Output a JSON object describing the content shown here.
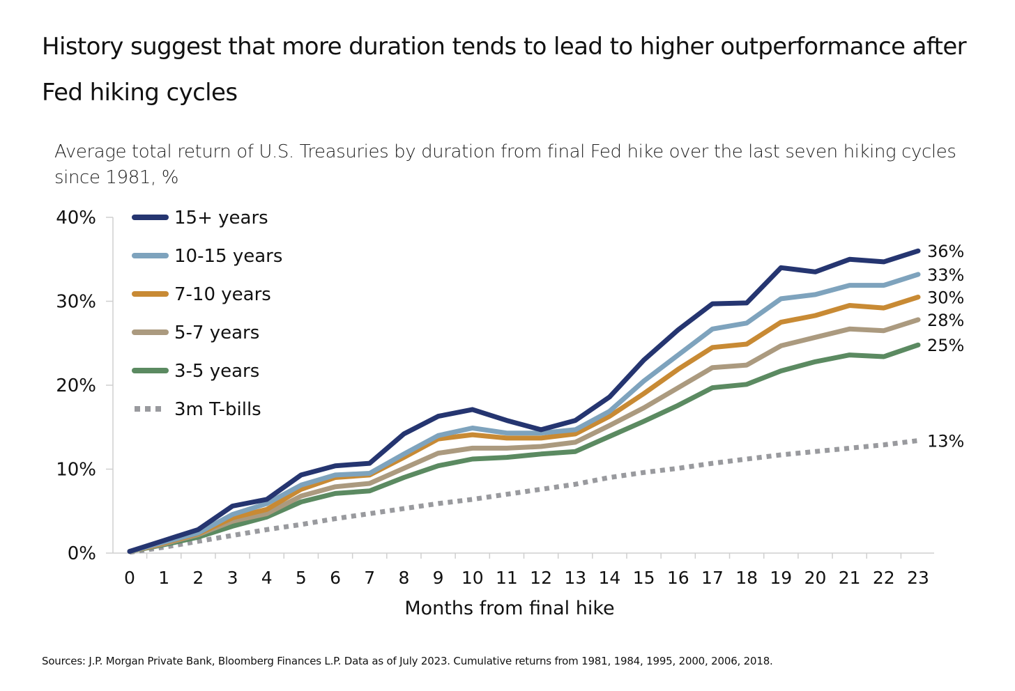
{
  "title": "History suggest that more duration tends to lead to higher outperformance after Fed hiking cycles",
  "subtitle": "Average total return of U.S. Treasuries by duration from final Fed hike over the last seven hiking cycles since 1981, %",
  "source": "Sources: J.P. Morgan Private Bank, Bloomberg Finances L.P. Data as of July 2023. Cumulative returns from 1981, 1984, 1995, 2000, 2006, 2018.",
  "chart_data": {
    "type": "line",
    "title": "History suggest that more duration tends to lead to higher outperformance after Fed hiking cycles",
    "subtitle": "Average total return of U.S. Treasuries by duration from final Fed hike over the last seven hiking cycles since 1981, %",
    "xlabel": "Months from final hike",
    "ylabel": "",
    "ylim": [
      0,
      40
    ],
    "yticks": [
      0,
      10,
      20,
      30,
      40
    ],
    "ytick_labels": [
      "0%",
      "10%",
      "20%",
      "30%",
      "40%"
    ],
    "x": [
      0,
      1,
      2,
      3,
      4,
      5,
      6,
      7,
      8,
      9,
      10,
      11,
      12,
      13,
      14,
      15,
      16,
      17,
      18,
      19,
      20,
      21,
      22,
      23
    ],
    "x_labels": [
      "0",
      "1",
      "2",
      "3",
      "4",
      "5",
      "6",
      "7",
      "8",
      "9",
      "10",
      "11",
      "12",
      "13",
      "14",
      "15",
      "16",
      "17",
      "18",
      "19",
      "20",
      "21",
      "22",
      "23"
    ],
    "grid": false,
    "legend_position": "top-left",
    "series": [
      {
        "name": "15+ years",
        "color": "#253570",
        "style": "solid",
        "end_label": "36%",
        "values": [
          0.2,
          1.5,
          2.8,
          5.6,
          6.4,
          9.3,
          10.4,
          10.7,
          14.2,
          16.3,
          17.1,
          15.8,
          14.7,
          15.8,
          18.6,
          23.0,
          26.6,
          29.7,
          29.8,
          34.0,
          33.5,
          35.0,
          34.7,
          36.0
        ]
      },
      {
        "name": "10-15 years",
        "color": "#7ea3bd",
        "style": "solid",
        "end_label": "33%",
        "values": [
          0.2,
          1.3,
          2.4,
          4.6,
          5.9,
          8.1,
          9.3,
          9.5,
          11.8,
          14.0,
          14.9,
          14.3,
          14.3,
          14.7,
          16.9,
          20.5,
          23.6,
          26.7,
          27.4,
          30.3,
          30.8,
          31.9,
          31.9,
          33.2
        ]
      },
      {
        "name": "7-10 years",
        "color": "#c88a34",
        "style": "solid",
        "end_label": "30%",
        "values": [
          0.2,
          1.2,
          2.3,
          4.2,
          5.2,
          7.6,
          9.0,
          9.3,
          11.4,
          13.6,
          14.1,
          13.7,
          13.7,
          14.2,
          16.3,
          19.0,
          21.9,
          24.5,
          24.9,
          27.5,
          28.3,
          29.5,
          29.2,
          30.5
        ]
      },
      {
        "name": "5-7 years",
        "color": "#ab9a7f",
        "style": "solid",
        "end_label": "28%",
        "values": [
          0.2,
          1.1,
          2.2,
          3.8,
          4.7,
          6.8,
          7.9,
          8.3,
          10.1,
          11.9,
          12.5,
          12.5,
          12.7,
          13.2,
          15.2,
          17.3,
          19.7,
          22.1,
          22.4,
          24.7,
          25.7,
          26.7,
          26.5,
          27.8
        ]
      },
      {
        "name": "3-5 years",
        "color": "#5b8a61",
        "style": "solid",
        "end_label": "25%",
        "values": [
          0.2,
          1.0,
          1.9,
          3.2,
          4.3,
          6.1,
          7.1,
          7.4,
          9.0,
          10.4,
          11.2,
          11.4,
          11.8,
          12.1,
          13.9,
          15.7,
          17.6,
          19.7,
          20.1,
          21.7,
          22.8,
          23.6,
          23.4,
          24.8
        ]
      },
      {
        "name": "3m T-bills",
        "color": "#999a9e",
        "style": "dotted",
        "end_label": "13%",
        "values": [
          0.1,
          0.7,
          1.4,
          2.1,
          2.8,
          3.4,
          4.1,
          4.7,
          5.3,
          5.9,
          6.4,
          7.0,
          7.6,
          8.2,
          9.0,
          9.6,
          10.1,
          10.7,
          11.2,
          11.7,
          12.1,
          12.5,
          12.9,
          13.4
        ]
      }
    ]
  }
}
